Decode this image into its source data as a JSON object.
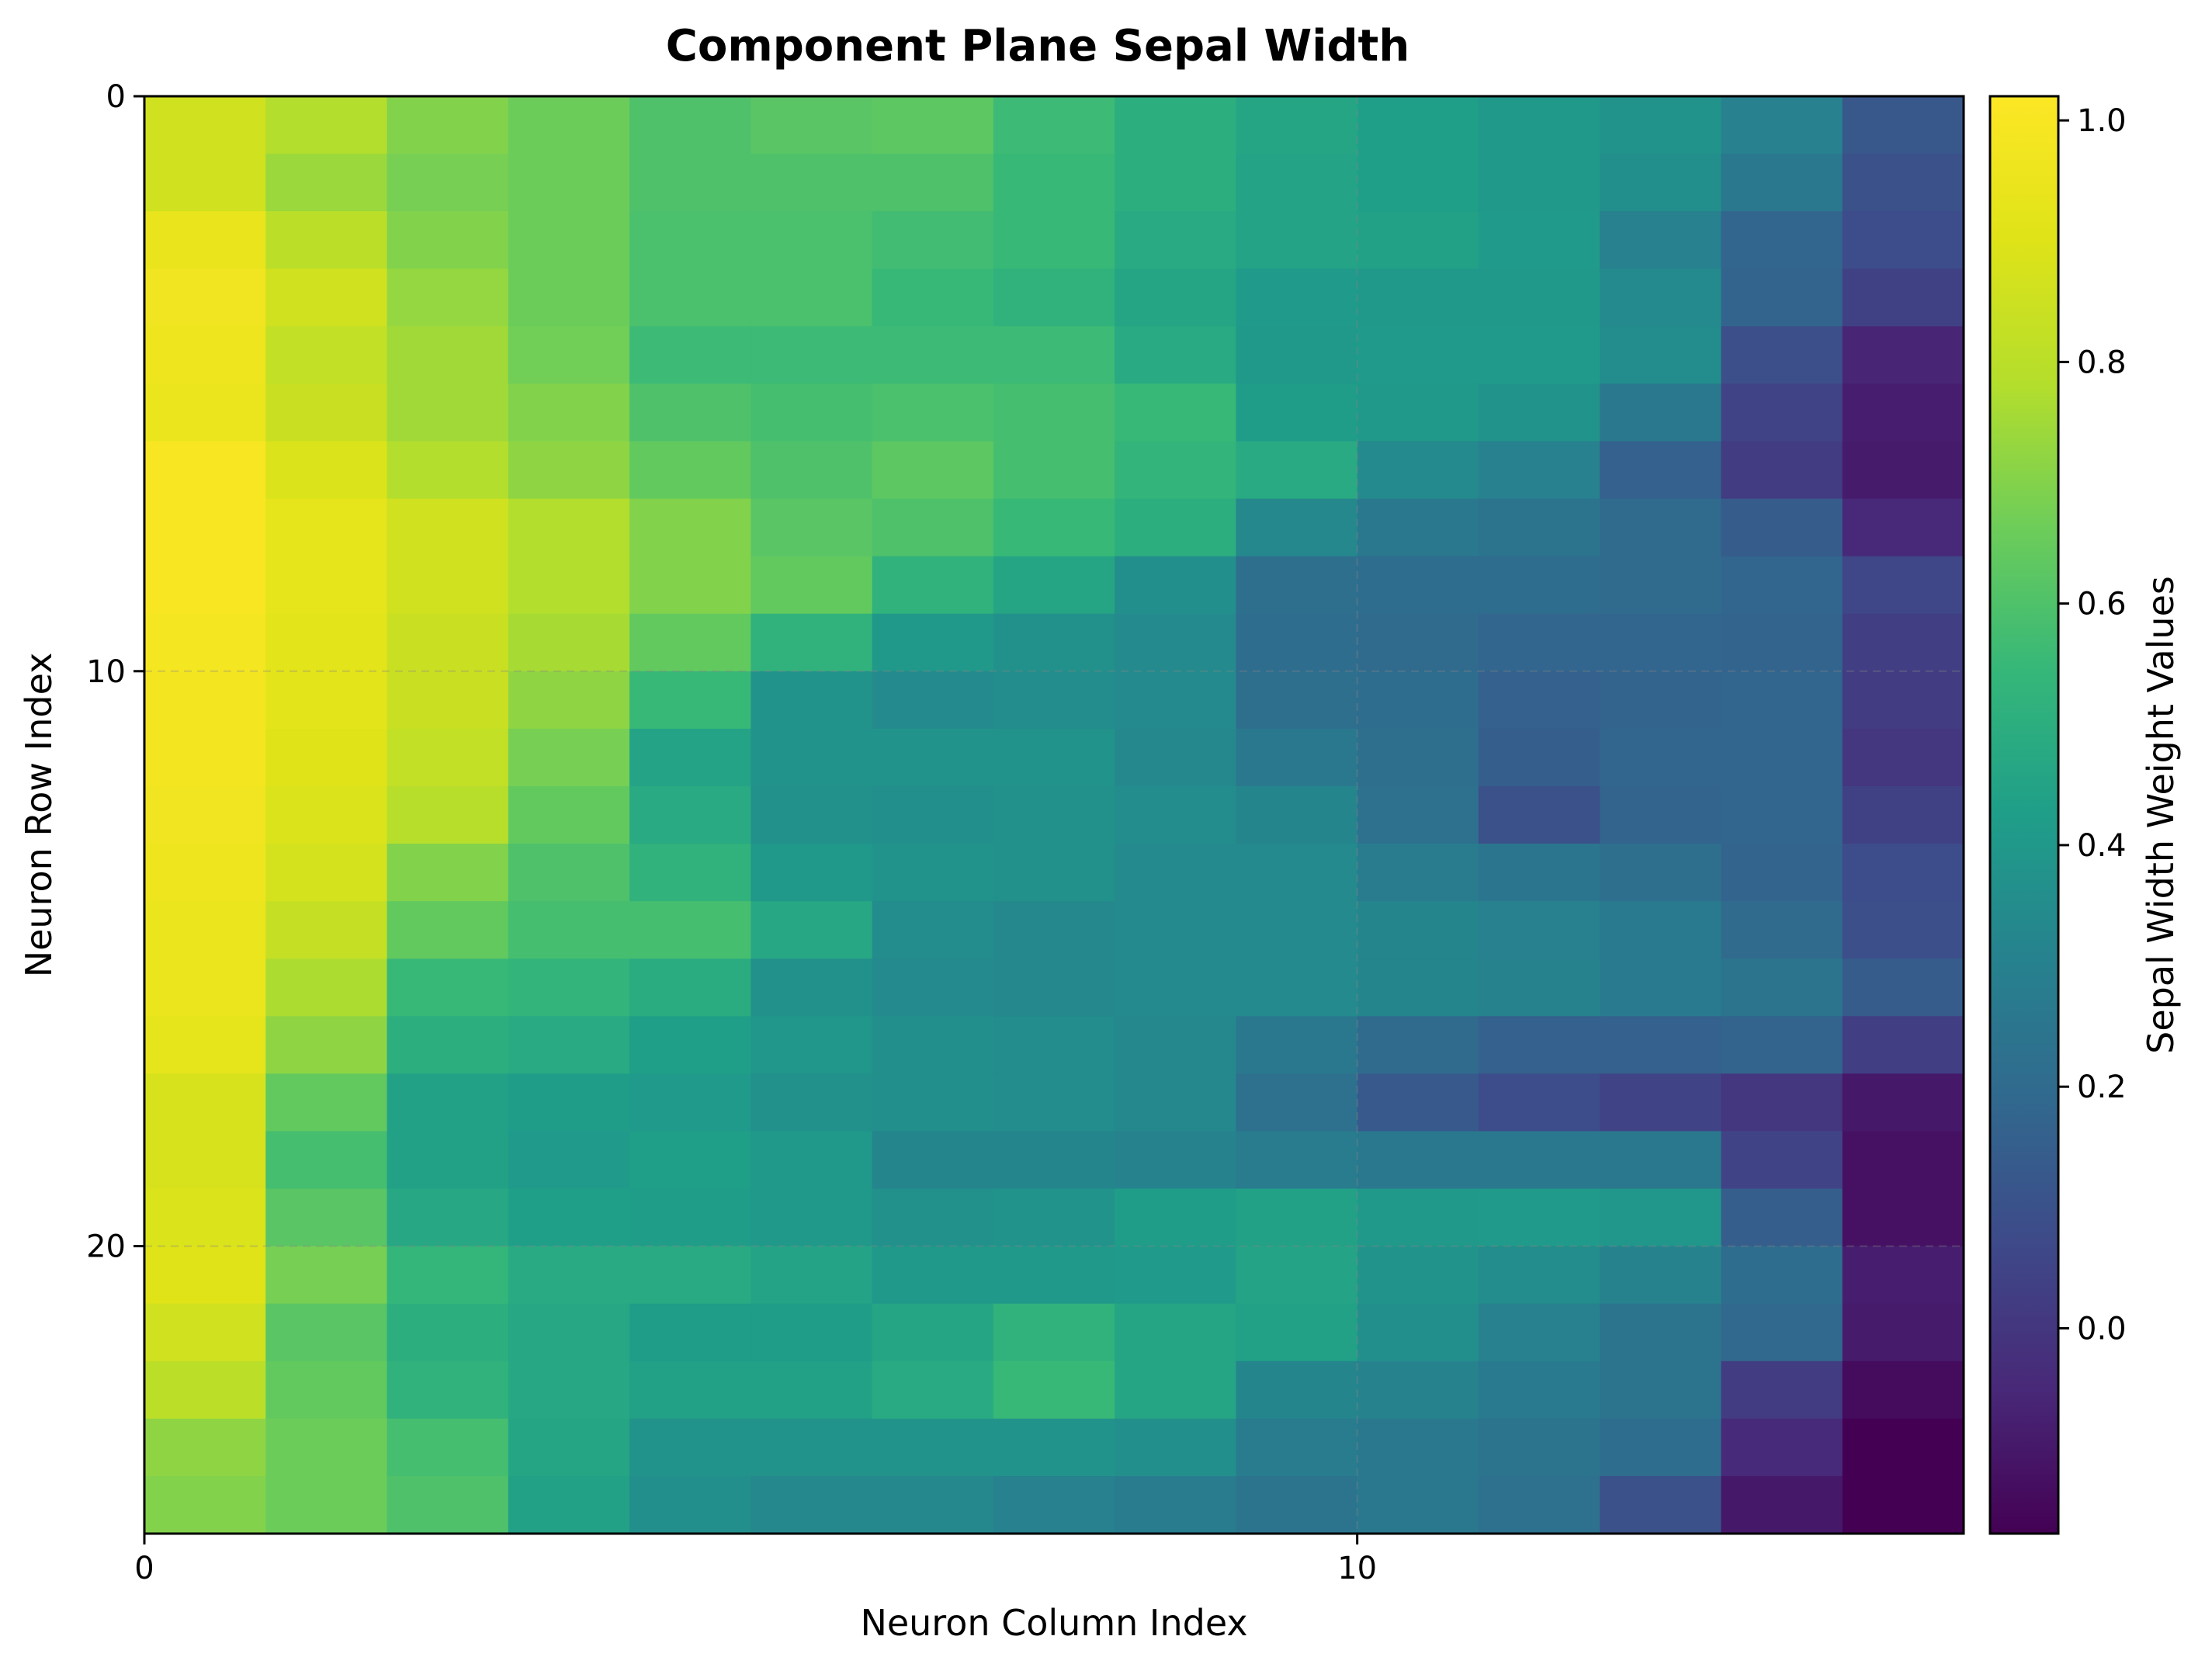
{
  "chart_data": {
    "type": "heatmap",
    "title": "Component Plane Sepal Width",
    "xlabel": "Neuron Column Index",
    "ylabel": "Neuron Row Index",
    "colorbar_label": "Sepal Width Weight Values",
    "colormap": "viridis",
    "n_rows": 25,
    "n_cols": 15,
    "x_ticks": [
      0,
      10
    ],
    "y_ticks": [
      0,
      10,
      20
    ],
    "x_tick_labels": [
      "0",
      "10"
    ],
    "y_tick_labels": [
      "0",
      "10",
      "20"
    ],
    "colorbar_ticks": [
      1.0,
      0.8,
      0.6,
      0.4,
      0.2,
      0.0
    ],
    "colorbar_tick_labels": [
      "1.0",
      "0.8",
      "0.6",
      "0.4",
      "0.2",
      "0.0"
    ],
    "vmin": -0.17,
    "vmax": 1.02,
    "grid": true,
    "values": [
      [
        0.86,
        0.78,
        0.7,
        0.66,
        0.6,
        0.62,
        0.63,
        0.56,
        0.5,
        0.46,
        0.43,
        0.4,
        0.38,
        0.3,
        0.12
      ],
      [
        0.86,
        0.74,
        0.68,
        0.66,
        0.6,
        0.6,
        0.6,
        0.55,
        0.5,
        0.45,
        0.43,
        0.4,
        0.36,
        0.26,
        0.1
      ],
      [
        0.94,
        0.8,
        0.7,
        0.66,
        0.59,
        0.59,
        0.57,
        0.55,
        0.48,
        0.45,
        0.44,
        0.41,
        0.3,
        0.18,
        0.08
      ],
      [
        0.97,
        0.86,
        0.73,
        0.66,
        0.59,
        0.59,
        0.55,
        0.52,
        0.46,
        0.41,
        0.4,
        0.4,
        0.34,
        0.17,
        0.04
      ],
      [
        0.96,
        0.82,
        0.75,
        0.67,
        0.56,
        0.56,
        0.56,
        0.56,
        0.48,
        0.4,
        0.41,
        0.41,
        0.35,
        0.09,
        -0.06
      ],
      [
        0.95,
        0.84,
        0.75,
        0.7,
        0.6,
        0.58,
        0.59,
        0.58,
        0.55,
        0.42,
        0.4,
        0.38,
        0.26,
        0.05,
        -0.08
      ],
      [
        1.0,
        0.89,
        0.78,
        0.72,
        0.64,
        0.6,
        0.63,
        0.58,
        0.53,
        0.48,
        0.34,
        0.3,
        0.16,
        0.02,
        -0.09
      ],
      [
        1.0,
        0.93,
        0.86,
        0.78,
        0.7,
        0.62,
        0.6,
        0.55,
        0.5,
        0.33,
        0.26,
        0.24,
        0.2,
        0.14,
        -0.05
      ],
      [
        1.0,
        0.93,
        0.86,
        0.78,
        0.7,
        0.64,
        0.52,
        0.46,
        0.36,
        0.22,
        0.21,
        0.21,
        0.2,
        0.18,
        0.06
      ],
      [
        0.99,
        0.92,
        0.84,
        0.76,
        0.64,
        0.52,
        0.4,
        0.37,
        0.34,
        0.21,
        0.2,
        0.18,
        0.18,
        0.17,
        0.03
      ],
      [
        0.98,
        0.92,
        0.84,
        0.72,
        0.55,
        0.38,
        0.34,
        0.35,
        0.34,
        0.22,
        0.21,
        0.16,
        0.17,
        0.18,
        0.02
      ],
      [
        0.98,
        0.91,
        0.82,
        0.68,
        0.45,
        0.38,
        0.38,
        0.38,
        0.33,
        0.26,
        0.22,
        0.15,
        0.18,
        0.18,
        0.0
      ],
      [
        0.97,
        0.89,
        0.79,
        0.64,
        0.48,
        0.37,
        0.36,
        0.37,
        0.35,
        0.32,
        0.23,
        0.1,
        0.17,
        0.18,
        0.04
      ],
      [
        0.96,
        0.87,
        0.7,
        0.6,
        0.52,
        0.4,
        0.38,
        0.37,
        0.34,
        0.34,
        0.28,
        0.25,
        0.22,
        0.17,
        0.08
      ],
      [
        0.95,
        0.83,
        0.64,
        0.58,
        0.58,
        0.47,
        0.35,
        0.33,
        0.34,
        0.34,
        0.32,
        0.3,
        0.27,
        0.2,
        0.09
      ],
      [
        0.95,
        0.77,
        0.55,
        0.53,
        0.49,
        0.37,
        0.34,
        0.33,
        0.34,
        0.34,
        0.32,
        0.31,
        0.27,
        0.24,
        0.14
      ],
      [
        0.93,
        0.72,
        0.5,
        0.48,
        0.43,
        0.39,
        0.36,
        0.35,
        0.33,
        0.26,
        0.2,
        0.16,
        0.16,
        0.17,
        0.03
      ],
      [
        0.88,
        0.64,
        0.44,
        0.42,
        0.41,
        0.37,
        0.36,
        0.35,
        0.33,
        0.23,
        0.13,
        0.08,
        0.05,
        0.0,
        -0.1
      ],
      [
        0.88,
        0.58,
        0.44,
        0.41,
        0.43,
        0.4,
        0.32,
        0.32,
        0.31,
        0.28,
        0.26,
        0.26,
        0.26,
        0.05,
        -0.12
      ],
      [
        0.89,
        0.62,
        0.47,
        0.43,
        0.42,
        0.4,
        0.37,
        0.38,
        0.42,
        0.44,
        0.4,
        0.41,
        0.39,
        0.15,
        -0.12
      ],
      [
        0.9,
        0.68,
        0.54,
        0.48,
        0.48,
        0.45,
        0.4,
        0.4,
        0.41,
        0.45,
        0.38,
        0.35,
        0.31,
        0.21,
        -0.08
      ],
      [
        0.86,
        0.62,
        0.5,
        0.47,
        0.42,
        0.42,
        0.46,
        0.52,
        0.46,
        0.44,
        0.36,
        0.3,
        0.24,
        0.19,
        -0.09
      ],
      [
        0.8,
        0.64,
        0.52,
        0.47,
        0.44,
        0.44,
        0.48,
        0.55,
        0.46,
        0.32,
        0.31,
        0.27,
        0.24,
        0.02,
        -0.14
      ],
      [
        0.72,
        0.66,
        0.58,
        0.46,
        0.38,
        0.38,
        0.38,
        0.38,
        0.36,
        0.28,
        0.26,
        0.24,
        0.21,
        -0.04,
        -0.17
      ],
      [
        0.7,
        0.66,
        0.6,
        0.44,
        0.36,
        0.33,
        0.33,
        0.3,
        0.28,
        0.24,
        0.26,
        0.23,
        0.1,
        -0.1,
        -0.18
      ]
    ]
  }
}
